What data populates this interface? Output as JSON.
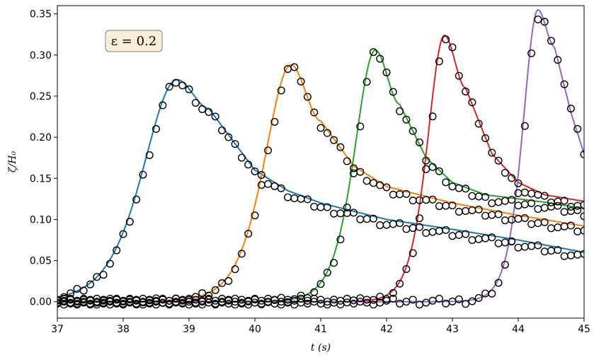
{
  "chart_data": {
    "type": "line",
    "xlabel": "t (s)",
    "ylabel": "ζ/H₀",
    "xlim": [
      37,
      45
    ],
    "ylim": [
      -0.02,
      0.36
    ],
    "x_ticks": [
      "37",
      "38",
      "39",
      "40",
      "41",
      "42",
      "43",
      "44",
      "45"
    ],
    "y_ticks": [
      "0.00",
      "0.05",
      "0.10",
      "0.15",
      "0.20",
      "0.25",
      "0.30",
      "0.35"
    ],
    "annotation": "ε = 0.2",
    "grid": false,
    "series": [
      {
        "color": "#1f77b4",
        "peak_t": 38.82,
        "peak": 0.27,
        "rise_width": 0.9,
        "tail": [
          [
            39.3,
            0.235
          ],
          [
            40.0,
            0.16
          ],
          [
            40.5,
            0.135
          ],
          [
            41.0,
            0.12
          ],
          [
            42.0,
            0.1
          ],
          [
            43.0,
            0.088
          ],
          [
            44.0,
            0.075
          ],
          [
            45.0,
            0.06
          ]
        ]
      },
      {
        "color": "#ff7f0e",
        "peak_t": 40.55,
        "peak": 0.288,
        "rise_width": 0.7,
        "tail": [
          [
            41.0,
            0.22
          ],
          [
            41.5,
            0.165
          ],
          [
            42.0,
            0.14
          ],
          [
            42.5,
            0.13
          ],
          [
            43.0,
            0.12
          ],
          [
            44.0,
            0.105
          ],
          [
            45.0,
            0.092
          ]
        ]
      },
      {
        "color": "#2ca02c",
        "peak_t": 41.83,
        "peak": 0.306,
        "rise_width": 0.55,
        "tail": [
          [
            42.2,
            0.24
          ],
          [
            42.6,
            0.175
          ],
          [
            43.0,
            0.145
          ],
          [
            43.5,
            0.13
          ],
          [
            44.0,
            0.125
          ],
          [
            44.5,
            0.12
          ],
          [
            45.0,
            0.113
          ]
        ]
      },
      {
        "color": "#d62728",
        "peak_t": 42.88,
        "peak": 0.324,
        "rise_width": 0.45,
        "tail": [
          [
            43.2,
            0.26
          ],
          [
            43.6,
            0.18
          ],
          [
            44.0,
            0.145
          ],
          [
            44.4,
            0.13
          ],
          [
            45.0,
            0.122
          ]
        ]
      },
      {
        "color": "#9467bd",
        "peak_t": 44.3,
        "peak": 0.355,
        "rise_width": 0.4,
        "tail": [
          [
            44.55,
            0.31
          ],
          [
            44.8,
            0.23
          ],
          [
            45.0,
            0.18
          ]
        ]
      }
    ],
    "markers": {
      "style": "open-circle",
      "color": "#000000",
      "spacing": 0.1
    }
  }
}
